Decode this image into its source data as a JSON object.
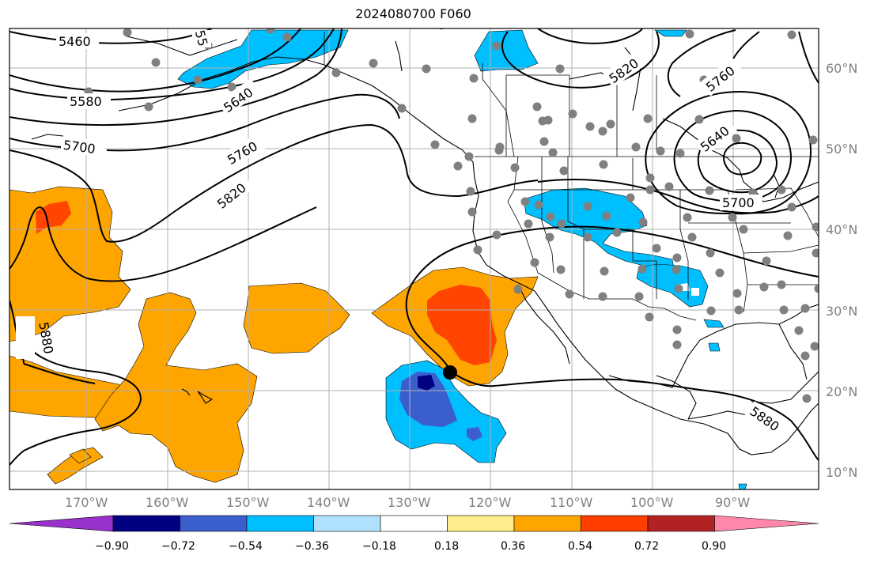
{
  "title": "2024080700 F060",
  "lat_labels": [
    "60°N",
    "50°N",
    "40°N",
    "30°N",
    "20°N",
    "10°N"
  ],
  "lon_labels": [
    "170°W",
    "160°W",
    "150°W",
    "140°W",
    "130°W",
    "120°W",
    "110°W",
    "100°W",
    "90°W"
  ],
  "colorbar": {
    "ticks": [
      "−0.90",
      "−0.72",
      "−0.54",
      "−0.36",
      "−0.18",
      "0.18",
      "0.36",
      "0.54",
      "0.72",
      "0.90"
    ],
    "colors": [
      "#9932CC",
      "#000080",
      "#3A5FCD",
      "#00BFFF",
      "#B0E2FF",
      "#FFFFFF",
      "#FFEC8B",
      "#FFA500",
      "#FF3E00",
      "#B22222",
      "#FF88AA"
    ]
  },
  "contour_labels": [
    "5460",
    "5580",
    "5700",
    "5640",
    "5760",
    "5820",
    "5820",
    "5760",
    "5640",
    "5700",
    "5880",
    "5880",
    "55"
  ],
  "colors": {
    "orange": "#FFA500",
    "red_orange": "#FF4500",
    "sky_blue": "#00BFFF",
    "royal_blue": "#3A5FCD",
    "navy": "#000080",
    "station_dot": "#808080",
    "grid": "#B0B0B0"
  }
}
